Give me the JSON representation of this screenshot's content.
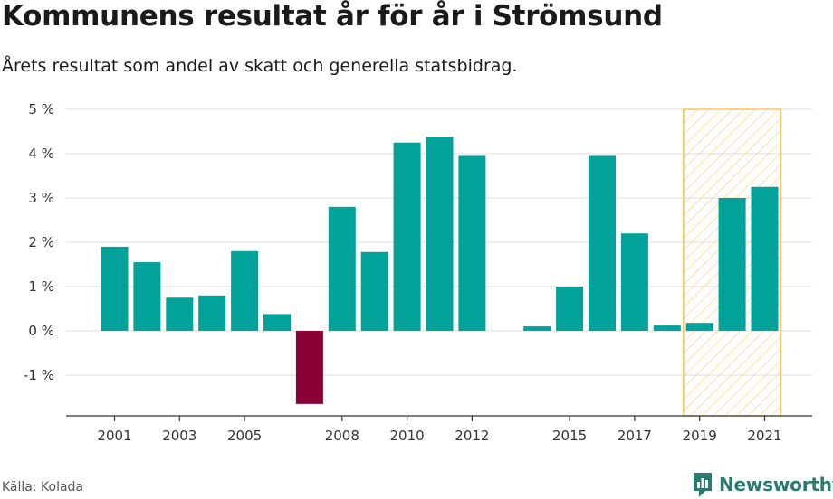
{
  "title": "Kommunens resultat år för år i Strömsund",
  "subtitle": "Årets resultat som andel av skatt och generella statsbidrag.",
  "source": "Källa: Kolada",
  "brand": "Newsworthy",
  "chart_data": {
    "type": "bar",
    "x": [
      2001,
      2002,
      2003,
      2004,
      2005,
      2006,
      2007,
      2008,
      2009,
      2010,
      2011,
      2012,
      2013,
      2014,
      2015,
      2016,
      2017,
      2018,
      2019,
      2020,
      2021
    ],
    "values": [
      1.9,
      1.55,
      0.75,
      0.8,
      1.8,
      0.38,
      -1.65,
      2.8,
      1.78,
      4.25,
      4.38,
      3.95,
      null,
      0.1,
      1.0,
      3.95,
      2.2,
      0.12,
      0.18,
      3.0,
      3.25
    ],
    "x_tick_labels": [
      "2001",
      "2003",
      "2005",
      "2008",
      "2010",
      "2012",
      "2015",
      "2017",
      "2019",
      "2021"
    ],
    "y_tick_labels": [
      "5 %",
      "4 %",
      "3 %",
      "2 %",
      "1 %",
      "0 %",
      "-1 %"
    ],
    "y_ticks": [
      5,
      4,
      3,
      2,
      1,
      0,
      -1
    ],
    "ylim": [
      -1.92,
      5
    ],
    "xlabel": "",
    "ylabel": "",
    "highlight_range": [
      2019,
      2021
    ],
    "grid": true,
    "colors": {
      "positive": "#00a29a",
      "negative": "#8b0035",
      "highlight_fill": "#fde7b8",
      "highlight_stroke": "#f8c75a",
      "grid": "#dddddd",
      "axis": "#333333"
    }
  }
}
